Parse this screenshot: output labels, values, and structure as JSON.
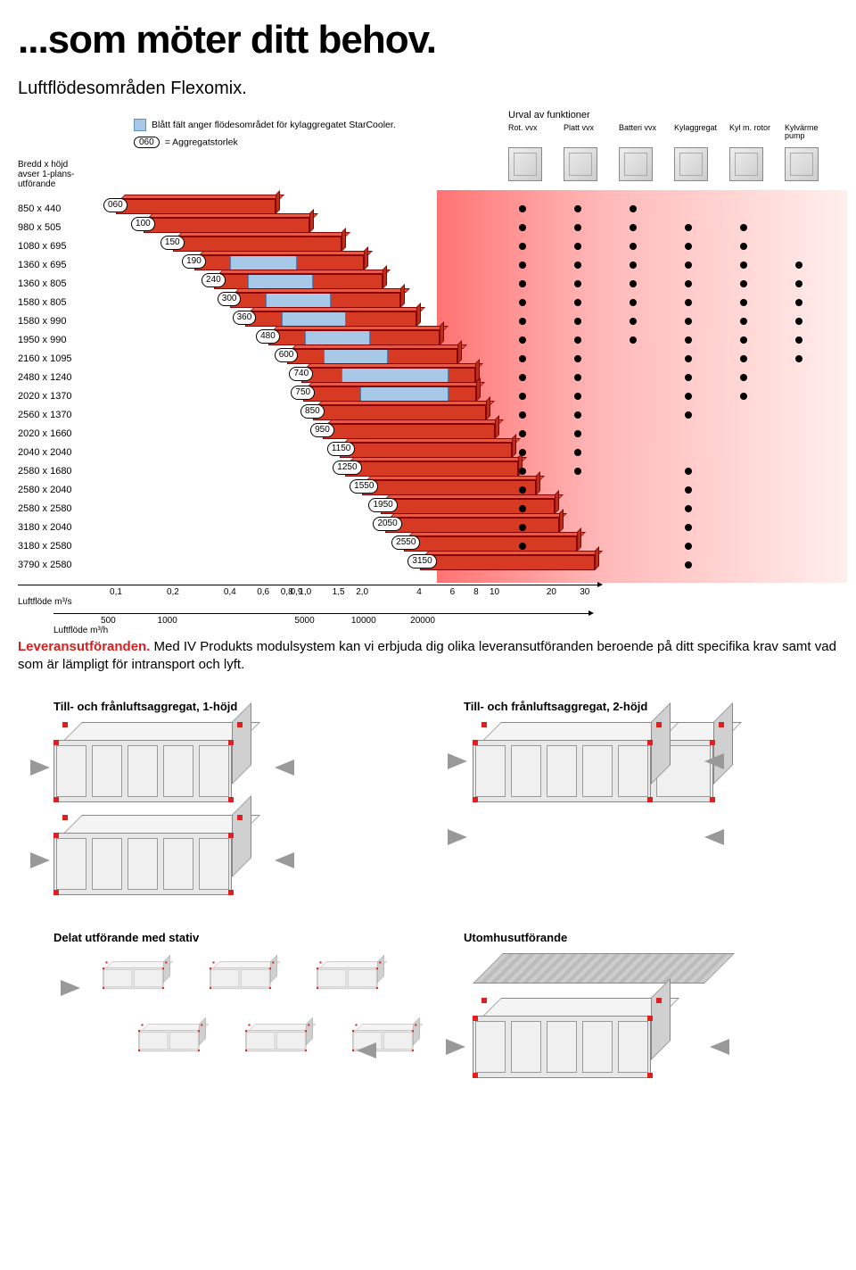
{
  "title": "...som möter ditt behov.",
  "subtitle": "Luftflödesområden Flexomix.",
  "legend": {
    "blue_text": "Blått fält anger flödesområdet för kylaggregatet StarCooler.",
    "size_text": "= Aggregatstorlek",
    "size_pill": "060",
    "blue_swatch_color": "#a8c8e8"
  },
  "dim_label": "Bredd x höjd\navser 1-plans-\nutförande",
  "chart": {
    "colors": {
      "bar_front": "#d63a22",
      "bar_top": "#e85a42",
      "bar_side": "#b8301a",
      "bar_border": "#880000",
      "blue": "#a8c8e8",
      "dot": "#000000",
      "red_fade_start": "rgba(255,0,0,0.55)"
    },
    "x_log_min": 0.1,
    "x_log_max": 35,
    "rows": [
      {
        "dim": "850 x 440",
        "pill": "060",
        "bar": [
          0.1,
          0.7
        ],
        "blue": null,
        "dots": [
          1,
          1,
          1,
          0,
          0,
          0
        ]
      },
      {
        "dim": "980 x 505",
        "pill": "100",
        "bar": [
          0.14,
          1.05
        ],
        "blue": null,
        "dots": [
          1,
          1,
          1,
          1,
          1,
          0
        ]
      },
      {
        "dim": "1080 x 695",
        "pill": "150",
        "bar": [
          0.2,
          1.55
        ],
        "blue": null,
        "dots": [
          1,
          1,
          1,
          1,
          1,
          0
        ]
      },
      {
        "dim": "1360 x 695",
        "pill": "190",
        "bar": [
          0.26,
          2.05
        ],
        "blue": [
          0.4,
          0.9
        ],
        "dots": [
          1,
          1,
          1,
          1,
          1,
          1
        ]
      },
      {
        "dim": "1360 x 805",
        "pill": "240",
        "bar": [
          0.33,
          2.55
        ],
        "blue": [
          0.5,
          1.1
        ],
        "dots": [
          1,
          1,
          1,
          1,
          1,
          1
        ]
      },
      {
        "dim": "1580 x 805",
        "pill": "300",
        "bar": [
          0.4,
          3.2
        ],
        "blue": [
          0.62,
          1.36
        ],
        "dots": [
          1,
          1,
          1,
          1,
          1,
          1
        ]
      },
      {
        "dim": "1580 x 990",
        "pill": "360",
        "bar": [
          0.48,
          3.85
        ],
        "blue": [
          0.75,
          1.65
        ],
        "dots": [
          1,
          1,
          1,
          1,
          1,
          1
        ]
      },
      {
        "dim": "1950 x 990",
        "pill": "480",
        "bar": [
          0.64,
          5.15
        ],
        "blue": [
          1.0,
          2.2
        ],
        "dots": [
          1,
          1,
          1,
          1,
          1,
          1
        ]
      },
      {
        "dim": "2160 x 1095",
        "pill": "600",
        "bar": [
          0.8,
          6.4
        ],
        "blue": [
          1.25,
          2.75
        ],
        "dots": [
          1,
          1,
          0,
          1,
          1,
          1
        ]
      },
      {
        "dim": "2480 x 1240",
        "pill": "740",
        "bar": [
          0.96,
          7.9
        ],
        "blue": [
          1.55,
          5.7
        ],
        "dots": [
          1,
          1,
          0,
          1,
          1,
          0
        ]
      },
      {
        "dim": "2020 x 1370",
        "pill": "750",
        "bar": [
          0.98,
          8.0
        ],
        "blue": [
          1.95,
          5.7
        ],
        "dots": [
          1,
          1,
          0,
          1,
          1,
          0
        ]
      },
      {
        "dim": "2560 x 1370",
        "pill": "850",
        "bar": [
          1.1,
          9.0
        ],
        "blue": null,
        "dots": [
          1,
          1,
          0,
          1,
          0,
          0
        ]
      },
      {
        "dim": "2020 x 1660",
        "pill": "950",
        "bar": [
          1.24,
          10.1
        ],
        "blue": null,
        "dots": [
          1,
          1,
          0,
          0,
          0,
          0
        ]
      },
      {
        "dim": "2040 x 2040",
        "pill": "1150",
        "bar": [
          1.52,
          12.3
        ],
        "blue": null,
        "dots": [
          1,
          1,
          0,
          0,
          0,
          0
        ]
      },
      {
        "dim": "2580 x 1680",
        "pill": "1250",
        "bar": [
          1.63,
          13.4
        ],
        "blue": null,
        "dots": [
          1,
          1,
          0,
          1,
          0,
          0
        ]
      },
      {
        "dim": "2580 x 2040",
        "pill": "1550",
        "bar": [
          2.0,
          16.6
        ],
        "blue": null,
        "dots": [
          1,
          0,
          0,
          1,
          0,
          0
        ]
      },
      {
        "dim": "2580 x 2580",
        "pill": "1950",
        "bar": [
          2.52,
          20.9
        ],
        "blue": null,
        "dots": [
          1,
          0,
          0,
          1,
          0,
          0
        ]
      },
      {
        "dim": "3180 x 2040",
        "pill": "2050",
        "bar": [
          2.66,
          21.9
        ],
        "blue": null,
        "dots": [
          1,
          0,
          0,
          1,
          0,
          0
        ]
      },
      {
        "dim": "3180 x 2580",
        "pill": "2550",
        "bar": [
          3.33,
          27.3
        ],
        "blue": null,
        "dots": [
          1,
          0,
          0,
          1,
          0,
          0
        ]
      },
      {
        "dim": "3790 x 2580",
        "pill": "3150",
        "bar": [
          4.06,
          33.7
        ],
        "blue": null,
        "dots": [
          0,
          0,
          0,
          1,
          0,
          0
        ]
      }
    ],
    "axis1": {
      "unit": "Luftflöde m³/s",
      "ticks": [
        {
          "v": 0.1,
          "l": "0,1"
        },
        {
          "v": 0.2,
          "l": "0,2"
        },
        {
          "v": 0.4,
          "l": "0,4"
        },
        {
          "v": 0.6,
          "l": "0,6"
        },
        {
          "v": 0.8,
          "l": "0,8"
        },
        {
          "v": 0.9,
          "l": "0,9"
        },
        {
          "v": 1.0,
          "l": "1,0"
        },
        {
          "v": 1.5,
          "l": "1,5"
        },
        {
          "v": 2.0,
          "l": "2,0"
        },
        {
          "v": 4,
          "l": "4"
        },
        {
          "v": 6,
          "l": "6"
        },
        {
          "v": 8,
          "l": "8"
        },
        {
          "v": 10,
          "l": "10"
        },
        {
          "v": 20,
          "l": "20"
        },
        {
          "v": 30,
          "l": "30"
        }
      ]
    },
    "axis2": {
      "unit": "Luftflöde m³/h",
      "ticks": [
        {
          "v": 500,
          "l": "500"
        },
        {
          "v": 1000,
          "l": "1000"
        },
        {
          "v": 5000,
          "l": "5000"
        },
        {
          "v": 10000,
          "l": "10000"
        },
        {
          "v": 20000,
          "l": "20000"
        }
      ],
      "min": 360,
      "max": 126000
    }
  },
  "functions": {
    "header": "Urval av funktioner",
    "cols": [
      "Rot. vvx",
      "Platt vvx",
      "Batteri vvx",
      "Kylaggregat",
      "Kyl m. rotor",
      "Kylvärme pump"
    ]
  },
  "bodytext": {
    "lead": "Leveransutföranden.",
    "rest": " Med IV Produkts modulsystem kan vi erbjuda dig olika leveransutföranden beroende på ditt specifika krav samt vad som är lämpligt för intransport och lyft."
  },
  "figures": {
    "a": "Till- och frånluftsaggregat, 1-höjd",
    "b": "Till- och frånluftsaggregat, 2-höjd",
    "c": "Delat utförande med stativ",
    "d": "Utomhusutförande"
  }
}
